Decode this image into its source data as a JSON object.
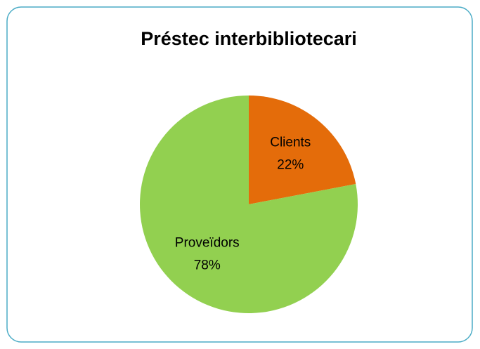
{
  "chart_data": {
    "type": "pie",
    "title": "Préstec interbibliotecari",
    "categories": [
      "Clients",
      "Proveïdors"
    ],
    "values": [
      22,
      78
    ],
    "value_labels": [
      "22%",
      "78%"
    ],
    "colors": [
      "#e46c0a",
      "#92d050"
    ]
  }
}
